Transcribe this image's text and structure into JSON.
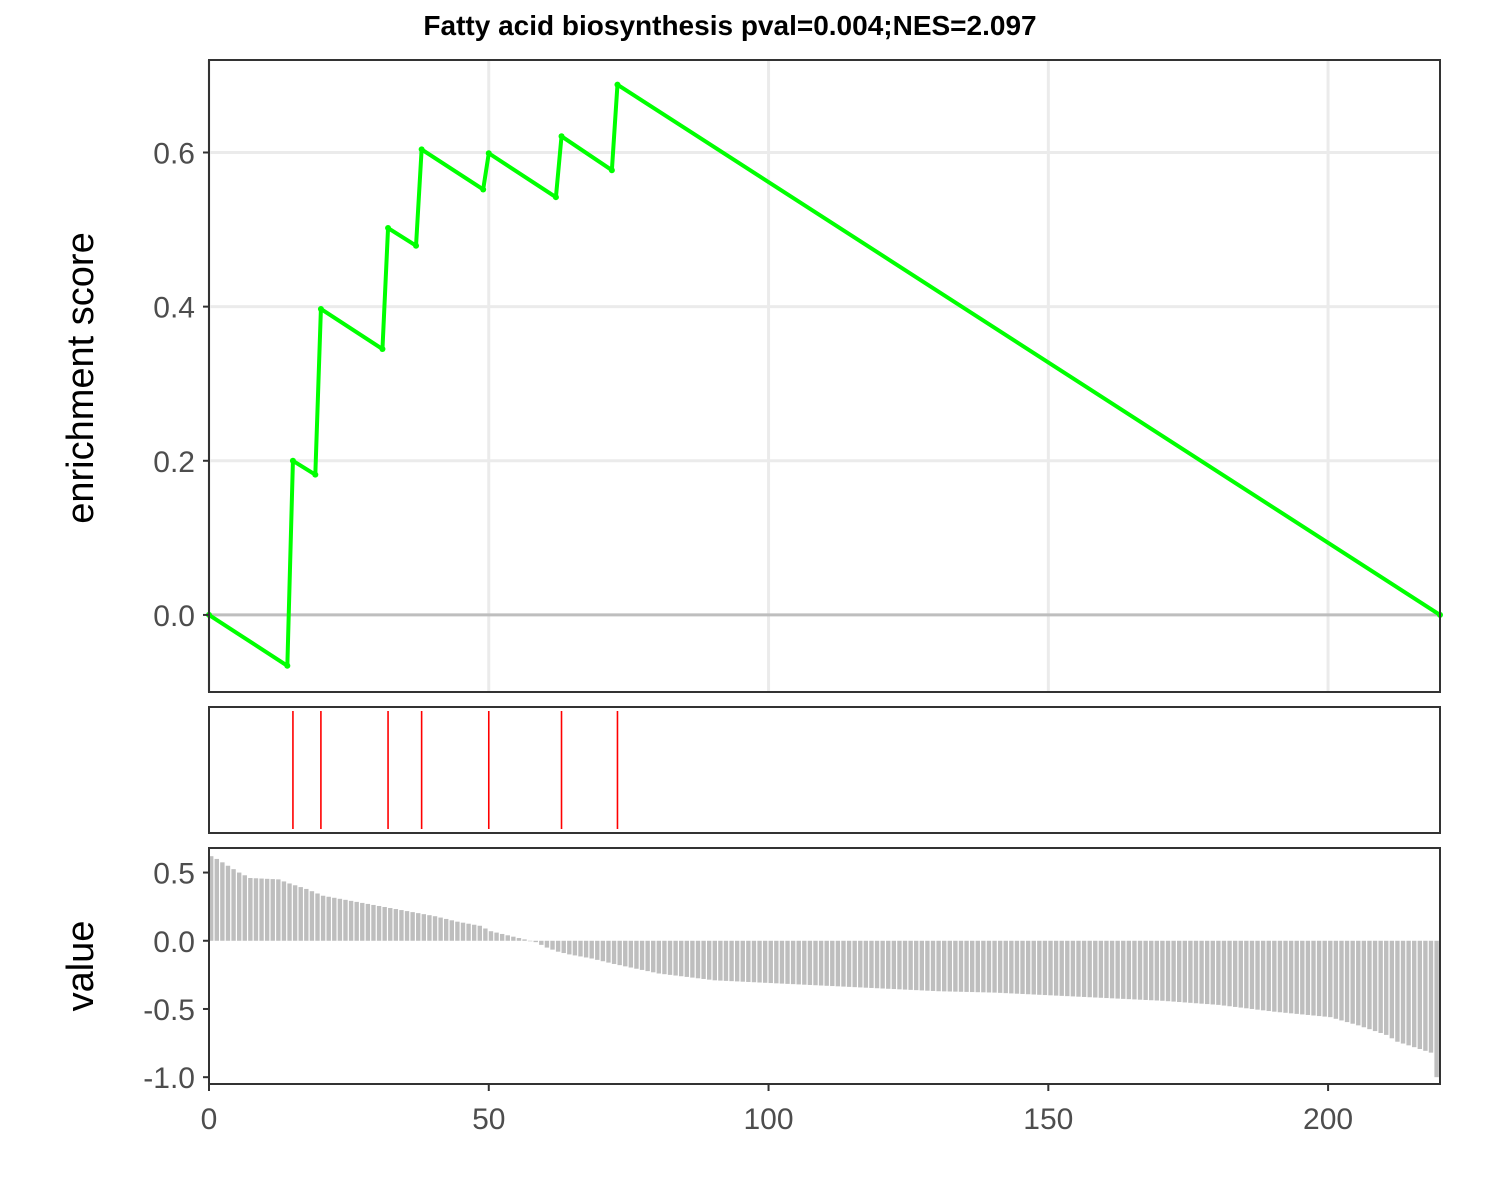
{
  "chart_data": {
    "type": "line",
    "title": "Fatty acid biosynthesis pval=0.004;NES=2.097",
    "panels": {
      "enrichment": {
        "ylabel": "enrichment score",
        "ylim": [
          -0.1,
          0.72
        ],
        "yticks": [
          0.0,
          0.2,
          0.4,
          0.6
        ],
        "ytick_labels": [
          "0.0",
          "0.2",
          "0.4",
          "0.6"
        ],
        "grid": true,
        "zero_line": true,
        "color": "#00ff00",
        "x": [
          0,
          14,
          15,
          19,
          20,
          31,
          32,
          37,
          38,
          49,
          50,
          62,
          63,
          72,
          73,
          220
        ],
        "y": [
          0.0,
          -0.066,
          0.2,
          0.182,
          0.397,
          0.345,
          0.502,
          0.479,
          0.604,
          0.552,
          0.599,
          0.542,
          0.621,
          0.577,
          0.688,
          0.0
        ]
      },
      "hits": {
        "color": "#ff0000",
        "positions": [
          15,
          20,
          32,
          38,
          50,
          63,
          73
        ]
      },
      "values": {
        "ylabel": "value",
        "ylim": [
          -1.05,
          0.68
        ],
        "yticks": [
          0.5,
          0.0,
          -0.5,
          -1.0
        ],
        "ytick_labels": [
          "0.5",
          "0.0",
          "-0.5",
          "-1.0"
        ],
        "color": "#bebebe",
        "anchors_x": [
          0,
          1,
          3,
          5,
          7,
          12,
          14,
          17,
          20,
          24,
          28,
          32,
          36,
          40,
          44,
          48,
          50,
          54,
          58,
          60,
          62,
          64,
          68,
          72,
          80,
          90,
          100,
          110,
          120,
          130,
          140,
          150,
          160,
          170,
          180,
          190,
          200,
          205,
          210,
          212,
          215,
          218,
          219
        ],
        "anchors_y": [
          0.62,
          0.6,
          0.55,
          0.5,
          0.46,
          0.45,
          0.42,
          0.38,
          0.33,
          0.3,
          0.27,
          0.24,
          0.21,
          0.18,
          0.14,
          0.11,
          0.07,
          0.03,
          -0.01,
          -0.05,
          -0.08,
          -0.1,
          -0.13,
          -0.17,
          -0.24,
          -0.29,
          -0.31,
          -0.33,
          -0.35,
          -0.37,
          -0.38,
          -0.4,
          -0.42,
          -0.44,
          -0.47,
          -0.52,
          -0.56,
          -0.62,
          -0.69,
          -0.74,
          -0.78,
          -0.82,
          -1.0
        ],
        "n": 220
      }
    },
    "xaxis": {
      "xlim": [
        0,
        220
      ],
      "ticks": [
        0,
        50,
        100,
        150,
        200
      ],
      "tick_labels": [
        "0",
        "50",
        "100",
        "150",
        "200"
      ]
    }
  }
}
